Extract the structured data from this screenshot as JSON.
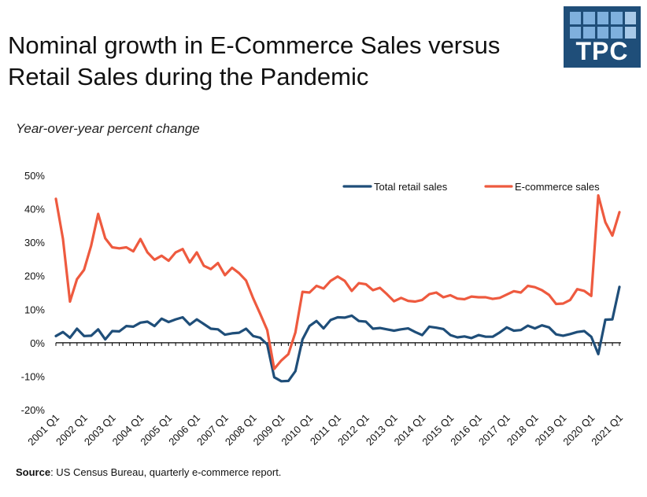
{
  "title": {
    "line1": "Nominal growth in E-Commerce Sales versus",
    "line2": "Retail Sales during the Pandemic"
  },
  "subtitle": "Year-over-year percent change",
  "logo": {
    "text": "TPC"
  },
  "source": {
    "label": "Source",
    "text": ": US Census Bureau, quarterly e-commerce report."
  },
  "colors": {
    "retail": "#1f4e79",
    "ecommerce": "#ee5a3f",
    "axis": "#000000"
  },
  "chart_data": {
    "type": "line",
    "title": "Nominal growth in E-Commerce Sales versus Retail Sales during the Pandemic",
    "ylabel": "Year-over-year percent change",
    "xlabel": "",
    "ylim": [
      -20,
      50
    ],
    "yticks": [
      -20,
      -10,
      0,
      10,
      20,
      30,
      40,
      50
    ],
    "ytick_labels": [
      "-20%",
      "-10%",
      "0%",
      "10%",
      "20%",
      "30%",
      "40%",
      "50%"
    ],
    "x_tick_labels": [
      "2001 Q1",
      "2002 Q1",
      "2003 Q1",
      "2004 Q1",
      "2005 Q1",
      "2006 Q1",
      "2007 Q1",
      "2008 Q1",
      "2009 Q1",
      "2010 Q1",
      "2011 Q1",
      "2012 Q1",
      "2013 Q1",
      "2014 Q1",
      "2015 Q1",
      "2016 Q1",
      "2017 Q1",
      "2018 Q1",
      "2019 Q1",
      "2020 Q1",
      "2021 Q1"
    ],
    "legend": {
      "position": "top-right"
    },
    "series": [
      {
        "name": "Total retail sales",
        "color": "#1f4e79",
        "values": [
          2.0,
          3.2,
          1.5,
          4.2,
          2.0,
          2.1,
          4.0,
          1.0,
          3.5,
          3.4,
          5.0,
          4.8,
          6.0,
          6.3,
          5.0,
          7.2,
          6.2,
          7.0,
          7.6,
          5.4,
          7.0,
          5.6,
          4.2,
          4.0,
          2.4,
          2.8,
          3.0,
          4.2,
          2.0,
          1.5,
          -0.5,
          -10.3,
          -11.5,
          -11.4,
          -8.5,
          1.0,
          5.0,
          6.5,
          4.3,
          6.8,
          7.6,
          7.5,
          8.1,
          6.5,
          6.3,
          4.2,
          4.4,
          4.0,
          3.6,
          4.0,
          4.3,
          3.2,
          2.3,
          4.8,
          4.5,
          4.1,
          2.3,
          1.6,
          1.9,
          1.4,
          2.3,
          1.8,
          1.8,
          3.1,
          4.6,
          3.6,
          3.8,
          5.1,
          4.3,
          5.2,
          4.6,
          2.5,
          2.1,
          2.6,
          3.2,
          3.5,
          1.8,
          -3.4,
          6.9,
          7.0,
          16.7
        ]
      },
      {
        "name": "E-commerce sales",
        "color": "#ee5a3f",
        "values": [
          43.0,
          31.0,
          12.3,
          19.0,
          21.8,
          29.0,
          38.5,
          31.2,
          28.5,
          28.2,
          28.5,
          27.3,
          31.0,
          27.0,
          24.8,
          26.0,
          24.5,
          27.0,
          28.0,
          24.0,
          27.0,
          23.0,
          22.0,
          23.8,
          20.2,
          22.4,
          20.8,
          18.6,
          13.3,
          8.6,
          3.8,
          -7.8,
          -5.3,
          -3.4,
          3.1,
          15.2,
          15.0,
          17.0,
          16.2,
          18.5,
          19.8,
          18.5,
          15.5,
          17.8,
          17.5,
          15.7,
          16.4,
          14.5,
          12.4,
          13.4,
          12.5,
          12.3,
          12.8,
          14.5,
          15.0,
          13.6,
          14.2,
          13.2,
          13.0,
          13.8,
          13.6,
          13.6,
          13.1,
          13.4,
          14.4,
          15.4,
          15.0,
          17.0,
          16.6,
          15.7,
          14.3,
          11.6,
          11.7,
          12.8,
          16.0,
          15.5,
          14.0,
          44.0,
          36.0,
          32.0,
          39.0
        ]
      }
    ]
  }
}
